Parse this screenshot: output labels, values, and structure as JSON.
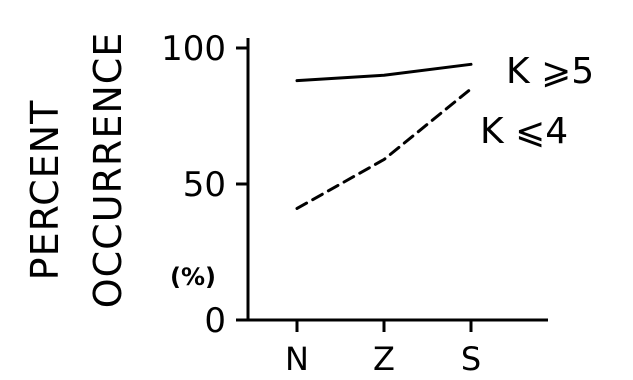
{
  "chart_data": {
    "type": "line",
    "ylabel_line1": "PERCENT",
    "ylabel_line2": "OCCURRENCE",
    "unit": "(%)",
    "categories": [
      "N",
      "Z",
      "S"
    ],
    "yticks": [
      "0",
      "50",
      "100"
    ],
    "ylim": [
      0,
      100
    ],
    "series": [
      {
        "name": "K ⩾5",
        "values": [
          88,
          90,
          94
        ],
        "style": "solid"
      },
      {
        "name": "K ⩽4",
        "values": [
          41,
          59,
          85
        ],
        "style": "dashed"
      }
    ],
    "grid": false,
    "legend": "inline labels at line ends"
  }
}
